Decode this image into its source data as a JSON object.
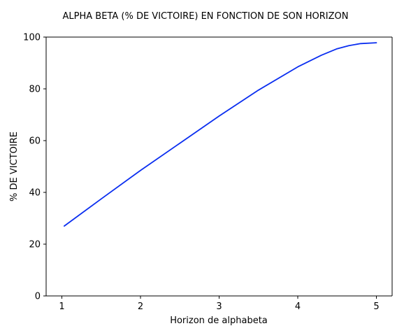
{
  "chart_data": {
    "type": "line",
    "title": "ALPHA BETA (% DE VICTOIRE) EN FONCTION DE SON HORIZON",
    "xlabel": "Horizon de alphabeta",
    "ylabel": "% DE VICTOIRE",
    "xlim": [
      0.8,
      5.2
    ],
    "ylim": [
      0,
      100
    ],
    "xticks": [
      1,
      2,
      3,
      4,
      5
    ],
    "yticks": [
      0,
      20,
      40,
      60,
      80,
      100
    ],
    "grid": false,
    "series": [
      {
        "color": "#0a2ef0",
        "x": [
          1.03,
          1.5,
          2.0,
          2.5,
          3.0,
          3.5,
          4.0,
          4.3,
          4.5,
          4.65,
          4.8,
          5.0
        ],
        "y": [
          27,
          37.5,
          48.5,
          59,
          69.5,
          79.5,
          88.5,
          93,
          95.5,
          96.7,
          97.5,
          97.8
        ]
      }
    ]
  }
}
